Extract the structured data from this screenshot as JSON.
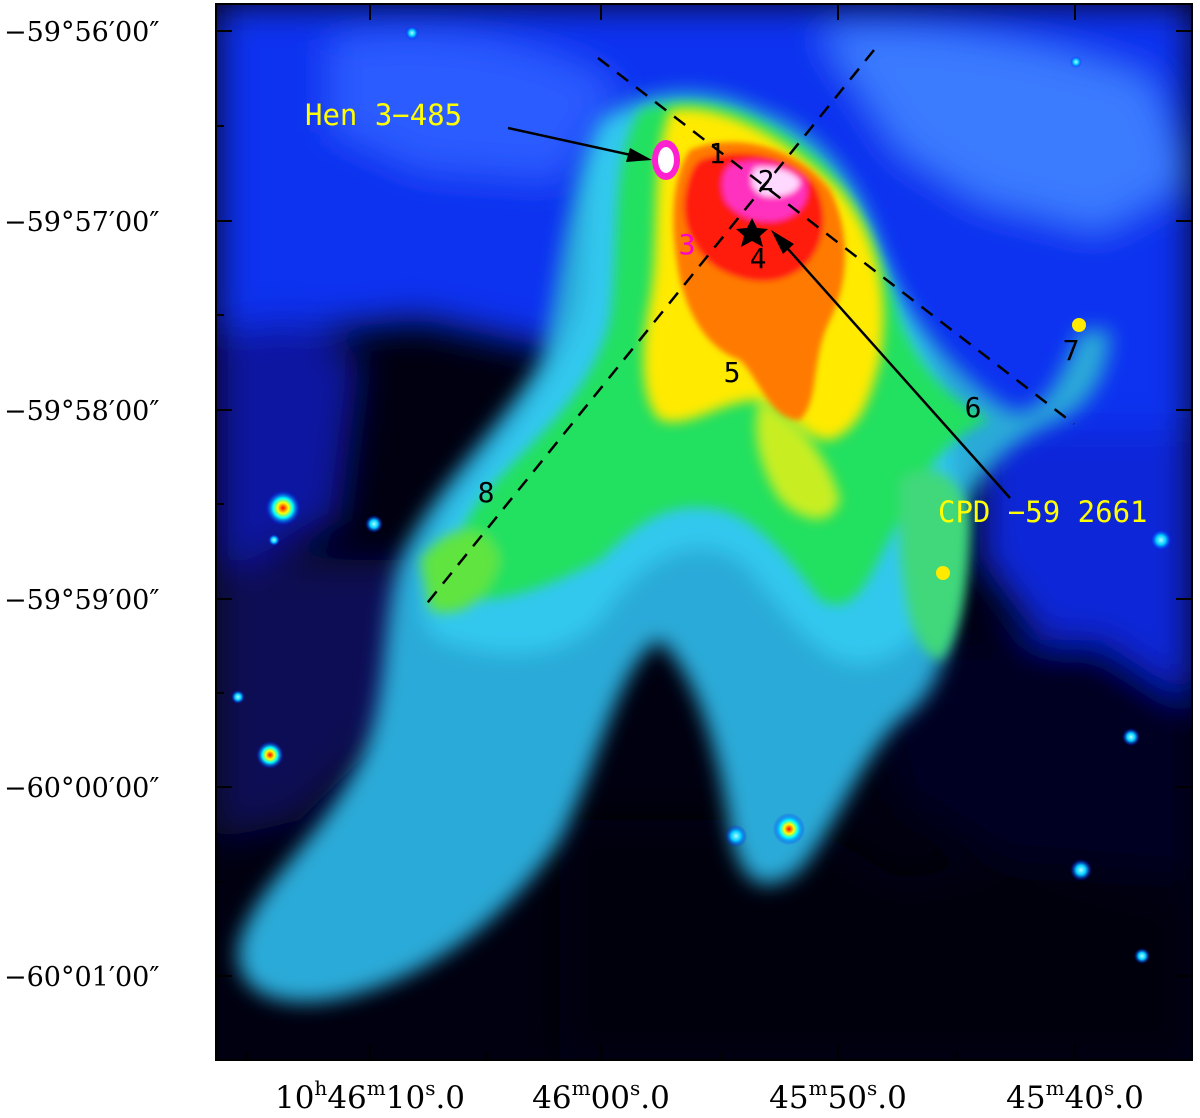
{
  "figure": {
    "y_ticks": [
      {
        "label": "−59°56′00″"
      },
      {
        "label": "−59°57′00″"
      },
      {
        "label": "−59°58′00″"
      },
      {
        "label": "−59°59′00″"
      },
      {
        "label": "−60°00′00″"
      },
      {
        "label": "−60°01′00″"
      }
    ],
    "x_ticks": [
      {
        "pre": "10",
        "h": "h",
        "mid": "46",
        "m": "m",
        "sec": "10",
        "s": "s",
        "dec": ".0"
      },
      {
        "pre": "",
        "h": "",
        "mid": "46",
        "m": "m",
        "sec": "00",
        "s": "s",
        "dec": ".0"
      },
      {
        "pre": "",
        "h": "",
        "mid": "45",
        "m": "m",
        "sec": "50",
        "s": "s",
        "dec": ".0"
      },
      {
        "pre": "",
        "h": "",
        "mid": "45",
        "m": "m",
        "sec": "40",
        "s": "s",
        "dec": ".0"
      }
    ],
    "region_labels": [
      "1",
      "2",
      "3",
      "4",
      "5",
      "6",
      "7",
      "8"
    ],
    "objects": {
      "hen": "Hen 3−485",
      "cpd": "CPD −59 2661"
    },
    "colors": {
      "object_label": "#ffff00",
      "region_label_dark": "#000000",
      "region_label_magenta": "#ff00cc",
      "background_sky": "#000000",
      "colormap": [
        "#000000",
        "#0000ff",
        "#00ffff",
        "#00ff00",
        "#ffff00",
        "#ff0000",
        "#ff00ff",
        "#ffffff"
      ]
    }
  }
}
